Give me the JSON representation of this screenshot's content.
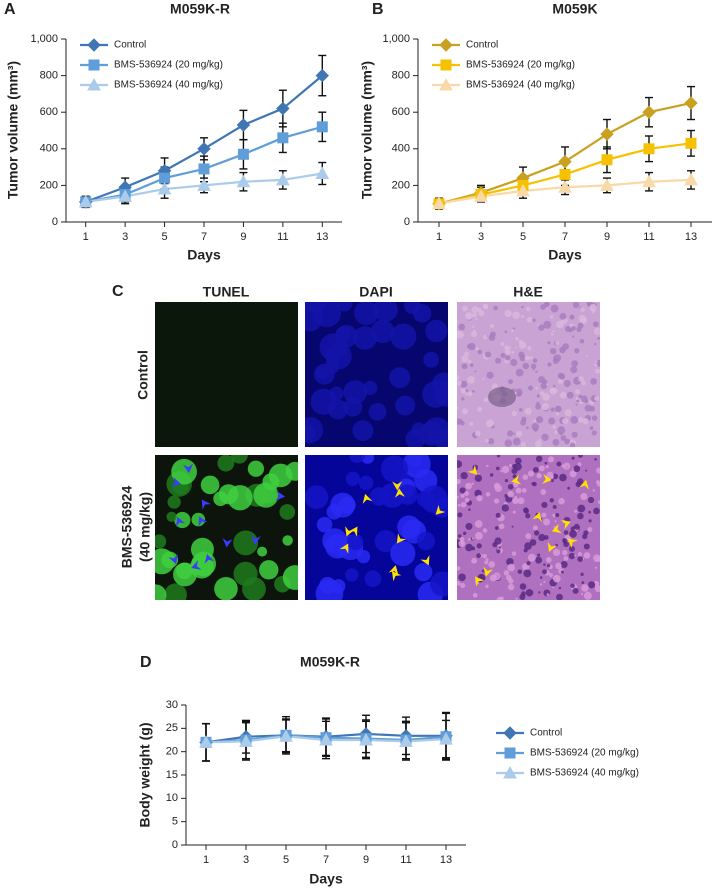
{
  "panel_labels": [
    "A",
    "B",
    "C",
    "D"
  ],
  "image_panel": {
    "columns": [
      "TUNEL",
      "DAPI",
      "H&E"
    ],
    "rows": [
      [
        "Control"
      ],
      [
        "BMS-536924",
        "(40 mg/kg)"
      ]
    ]
  },
  "chart_data": [
    {
      "type": "line",
      "title": "M059K-R",
      "x_label": "Days",
      "y_label": "Tumor volume (mm³)",
      "x": [
        1,
        3,
        5,
        7,
        9,
        11,
        13
      ],
      "xlim": [
        0,
        14
      ],
      "xticks": [
        1,
        3,
        5,
        7,
        9,
        11,
        13
      ],
      "ylim": [
        0,
        1000
      ],
      "yticks": [
        0,
        200,
        400,
        600,
        800,
        {
          "value": 1000,
          "label": "1,000"
        }
      ],
      "legend": "upper left",
      "series": [
        {
          "name": "Control",
          "color": "#3f76b3",
          "marker": "diamond",
          "values": [
            110,
            190,
            280,
            400,
            530,
            620,
            800
          ],
          "errors": [
            30,
            50,
            70,
            60,
            80,
            100,
            110
          ]
        },
        {
          "name": "BMS-536924 (20 mg/kg)",
          "color": "#5f9ed8",
          "marker": "square",
          "values": [
            110,
            150,
            240,
            290,
            370,
            460,
            520
          ],
          "errors": [
            30,
            40,
            60,
            70,
            80,
            80,
            80
          ]
        },
        {
          "name": "BMS-536924 (40 mg/kg)",
          "color": "#aacbea",
          "marker": "triangle",
          "values": [
            110,
            140,
            180,
            200,
            220,
            230,
            265
          ],
          "errors": [
            20,
            40,
            50,
            40,
            50,
            50,
            60
          ]
        }
      ]
    },
    {
      "type": "line",
      "title": "M059K",
      "x_label": "Days",
      "y_label": "Tumor volume (mm³)",
      "x": [
        1,
        3,
        5,
        7,
        9,
        11,
        13
      ],
      "xlim": [
        0,
        14
      ],
      "xticks": [
        1,
        3,
        5,
        7,
        9,
        11,
        13
      ],
      "ylim": [
        0,
        1000
      ],
      "yticks": [
        0,
        200,
        400,
        600,
        800,
        {
          "value": 1000,
          "label": "1,000"
        }
      ],
      "legend": "upper left",
      "series": [
        {
          "name": "Control",
          "color": "#c9a020",
          "marker": "diamond",
          "values": [
            100,
            160,
            240,
            330,
            480,
            600,
            650
          ],
          "errors": [
            30,
            40,
            60,
            80,
            80,
            80,
            90
          ]
        },
        {
          "name": "BMS-536924 (20 mg/kg)",
          "color": "#f6c100",
          "marker": "square",
          "values": [
            100,
            150,
            200,
            260,
            340,
            400,
            430
          ],
          "errors": [
            30,
            40,
            50,
            60,
            70,
            70,
            70
          ]
        },
        {
          "name": "BMS-536924 (40 mg/kg)",
          "color": "#f9d9a8",
          "marker": "triangle",
          "values": [
            100,
            140,
            170,
            190,
            200,
            220,
            230
          ],
          "errors": [
            20,
            30,
            40,
            40,
            40,
            50,
            50
          ]
        }
      ]
    },
    {
      "type": "line",
      "title": "M059K-R",
      "x_label": "Days",
      "y_label": "Body weight (g)",
      "x": [
        1,
        3,
        5,
        7,
        9,
        11,
        13
      ],
      "xlim": [
        0,
        14
      ],
      "xticks": [
        1,
        3,
        5,
        7,
        9,
        11,
        13
      ],
      "ylim": [
        0,
        30
      ],
      "yticks": [
        0,
        5,
        10,
        15,
        20,
        25,
        30
      ],
      "legend": "right",
      "series": [
        {
          "name": "Control",
          "color": "#3f76b3",
          "marker": "diamond",
          "values": [
            22,
            23.2,
            23.5,
            23.2,
            23.8,
            23.4,
            23.4
          ],
          "errors": [
            4,
            3.5,
            4,
            4,
            4,
            4,
            5
          ]
        },
        {
          "name": "BMS-536924 (20 mg/kg)",
          "color": "#5f9ed8",
          "marker": "square",
          "values": [
            22,
            22.5,
            23.5,
            23,
            22.8,
            22.5,
            23.2
          ],
          "errors": [
            4,
            4,
            3.5,
            4,
            4,
            4,
            5
          ]
        },
        {
          "name": "BMS-536924 (40 mg/kg)",
          "color": "#aacbea",
          "marker": "triangle",
          "values": [
            22,
            22.2,
            23.3,
            22.5,
            22.5,
            22.2,
            22.7
          ],
          "errors": [
            4,
            4,
            3.5,
            4,
            4,
            4,
            4
          ]
        }
      ]
    }
  ]
}
